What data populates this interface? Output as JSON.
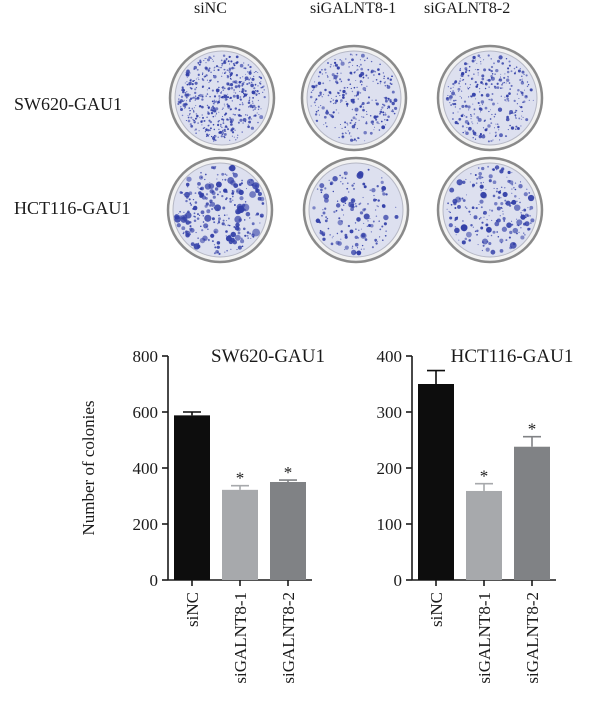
{
  "figure": {
    "conditions": [
      "siNC",
      "siGALNT8-1",
      "siGALNT8-2"
    ],
    "cell_lines": [
      "SW620-GAU1",
      "HCT116-GAU1"
    ],
    "dish_stain_color": "#3340a8",
    "dish_background_color": "#dde0ef",
    "dish_rim_color": "#8a8a8a"
  },
  "chart_data": [
    {
      "type": "bar",
      "title": "SW620-GAU1",
      "ylabel": "Number of colonies",
      "xlabel": "",
      "categories": [
        "siNC",
        "siGALNT8-1",
        "siGALNT8-2"
      ],
      "values": [
        588,
        322,
        350
      ],
      "errors": [
        12,
        15,
        7
      ],
      "significance": [
        "",
        "*",
        "*"
      ],
      "ylim": [
        0,
        800
      ],
      "yticks": [
        0,
        200,
        400,
        600,
        800
      ],
      "bar_colors": [
        "#0d0d0d",
        "#a7a9ac",
        "#808285"
      ]
    },
    {
      "type": "bar",
      "title": "HCT116-GAU1",
      "ylabel": "",
      "xlabel": "",
      "categories": [
        "siNC",
        "siGALNT8-1",
        "siGALNT8-2"
      ],
      "values": [
        350,
        159,
        238
      ],
      "errors": [
        24,
        13,
        18
      ],
      "significance": [
        "",
        "*",
        "*"
      ],
      "ylim": [
        0,
        400
      ],
      "yticks": [
        0,
        100,
        200,
        300,
        400
      ],
      "bar_colors": [
        "#0d0d0d",
        "#a7a9ac",
        "#808285"
      ]
    }
  ]
}
